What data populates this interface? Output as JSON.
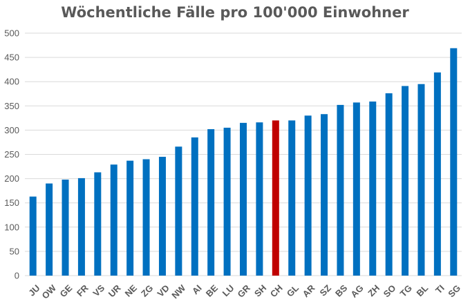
{
  "chart_data": {
    "type": "bar",
    "title": "Wöchentliche Fälle pro 100'000 Einwohner",
    "xlabel": "",
    "ylabel": "",
    "ylim": [
      0,
      500
    ],
    "yticks": [
      0,
      50,
      100,
      150,
      200,
      250,
      300,
      350,
      400,
      450,
      500
    ],
    "grid": true,
    "legend": "none",
    "categories": [
      "JU",
      "OW",
      "GE",
      "FR",
      "VS",
      "UR",
      "NE",
      "ZG",
      "VD",
      "NW",
      "AI",
      "BE",
      "LU",
      "GR",
      "SH",
      "CH",
      "GL",
      "AR",
      "SZ",
      "BS",
      "AG",
      "ZH",
      "SO",
      "TG",
      "BL",
      "TI",
      "SG"
    ],
    "values": [
      163,
      190,
      198,
      201,
      213,
      229,
      237,
      240,
      245,
      266,
      285,
      302,
      305,
      315,
      316,
      320,
      320,
      330,
      333,
      352,
      357,
      359,
      376,
      391,
      395,
      419,
      469
    ],
    "highlight": "CH",
    "colors": {
      "bar": "#0070C0",
      "highlight": "#C00000",
      "grid": "#D9D9D9",
      "text": "#595959"
    }
  }
}
